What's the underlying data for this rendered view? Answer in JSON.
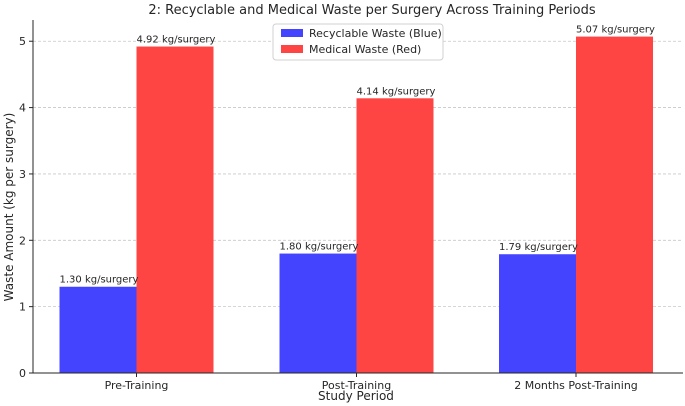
{
  "chart_data": {
    "type": "bar",
    "title": "2: Recyclable and Medical Waste per Surgery Across Training Periods",
    "xlabel": "Study Period",
    "ylabel": "Waste Amount (kg per surgery)",
    "categories": [
      "Pre-Training",
      "Post-Training",
      "2 Months Post-Training"
    ],
    "series": [
      {
        "name": "Recyclable Waste (Blue)",
        "color": "#4444ff",
        "values": [
          1.3,
          1.8,
          1.79
        ],
        "labels": [
          "1.30 kg/surgery",
          "1.80 kg/surgery",
          "1.79 kg/surgery"
        ]
      },
      {
        "name": "Medical Waste (Red)",
        "color": "#ff4444",
        "values": [
          4.92,
          4.14,
          5.07
        ],
        "labels": [
          "4.92 kg/surgery",
          "4.14 kg/surgery",
          "5.07 kg/surgery"
        ]
      }
    ],
    "ylim": [
      0,
      5.32
    ],
    "yticks": [
      0,
      1,
      2,
      3,
      4,
      5
    ],
    "grid": "horizontal dashed",
    "legend": "top-center"
  }
}
